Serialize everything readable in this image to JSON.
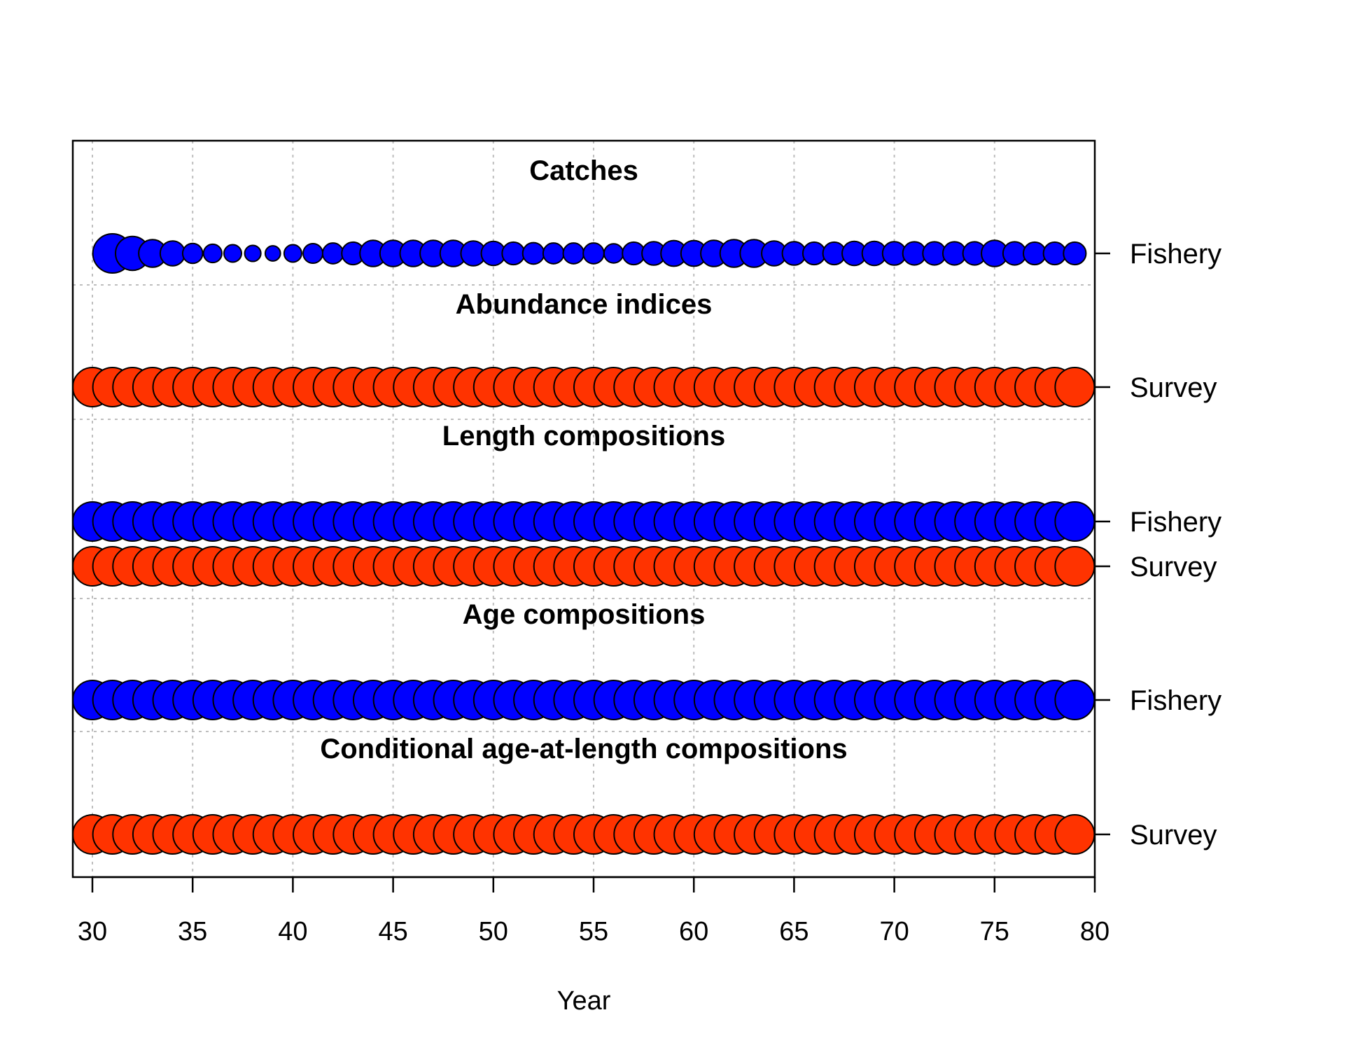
{
  "colors": {
    "fishery": "#0000ff",
    "survey": "#ff3300",
    "outline": "#000000",
    "grid": "#bebebe"
  },
  "chart_data": {
    "type": "scatter",
    "xlabel": "Year",
    "xlim": [
      29,
      80
    ],
    "x_ticks": [
      30,
      35,
      40,
      45,
      50,
      55,
      60,
      65,
      70,
      75,
      80
    ],
    "years": [
      30,
      31,
      32,
      33,
      34,
      35,
      36,
      37,
      38,
      39,
      40,
      41,
      42,
      43,
      44,
      45,
      46,
      47,
      48,
      49,
      50,
      51,
      52,
      53,
      54,
      55,
      56,
      57,
      58,
      59,
      60,
      61,
      62,
      63,
      64,
      65,
      66,
      67,
      68,
      69,
      70,
      71,
      72,
      73,
      74,
      75,
      76,
      77,
      78,
      79
    ],
    "grid": true,
    "sections": [
      {
        "title": "Catches",
        "rows": [
          {
            "label": "Fishery",
            "fleet": "fishery",
            "start_year": 31,
            "relative_size": [
              1.0,
              0.75,
              0.5,
              0.4,
              0.26,
              0.22,
              0.2,
              0.17,
              0.15,
              0.2,
              0.25,
              0.28,
              0.33,
              0.45,
              0.45,
              0.45,
              0.45,
              0.45,
              0.4,
              0.38,
              0.33,
              0.3,
              0.28,
              0.28,
              0.28,
              0.24,
              0.33,
              0.36,
              0.43,
              0.43,
              0.45,
              0.5,
              0.5,
              0.4,
              0.36,
              0.33,
              0.33,
              0.38,
              0.38,
              0.36,
              0.35,
              0.35,
              0.35,
              0.35,
              0.45,
              0.35,
              0.33,
              0.33,
              0.33
            ]
          }
        ]
      },
      {
        "title": "Abundance indices",
        "rows": [
          {
            "label": "Survey",
            "fleet": "survey",
            "start_year": 30,
            "uniform_relative_size": 1.0
          }
        ]
      },
      {
        "title": "Length compositions",
        "rows": [
          {
            "label": "Fishery",
            "fleet": "fishery",
            "start_year": 30,
            "uniform_relative_size": 1.0
          },
          {
            "label": "Survey",
            "fleet": "survey",
            "start_year": 30,
            "uniform_relative_size": 1.0
          }
        ]
      },
      {
        "title": "Age compositions",
        "rows": [
          {
            "label": "Fishery",
            "fleet": "fishery",
            "start_year": 30,
            "uniform_relative_size": 1.0
          }
        ]
      },
      {
        "title": "Conditional age-at-length compositions",
        "rows": [
          {
            "label": "Survey",
            "fleet": "survey",
            "start_year": 30,
            "uniform_relative_size": 1.0
          }
        ]
      }
    ]
  }
}
